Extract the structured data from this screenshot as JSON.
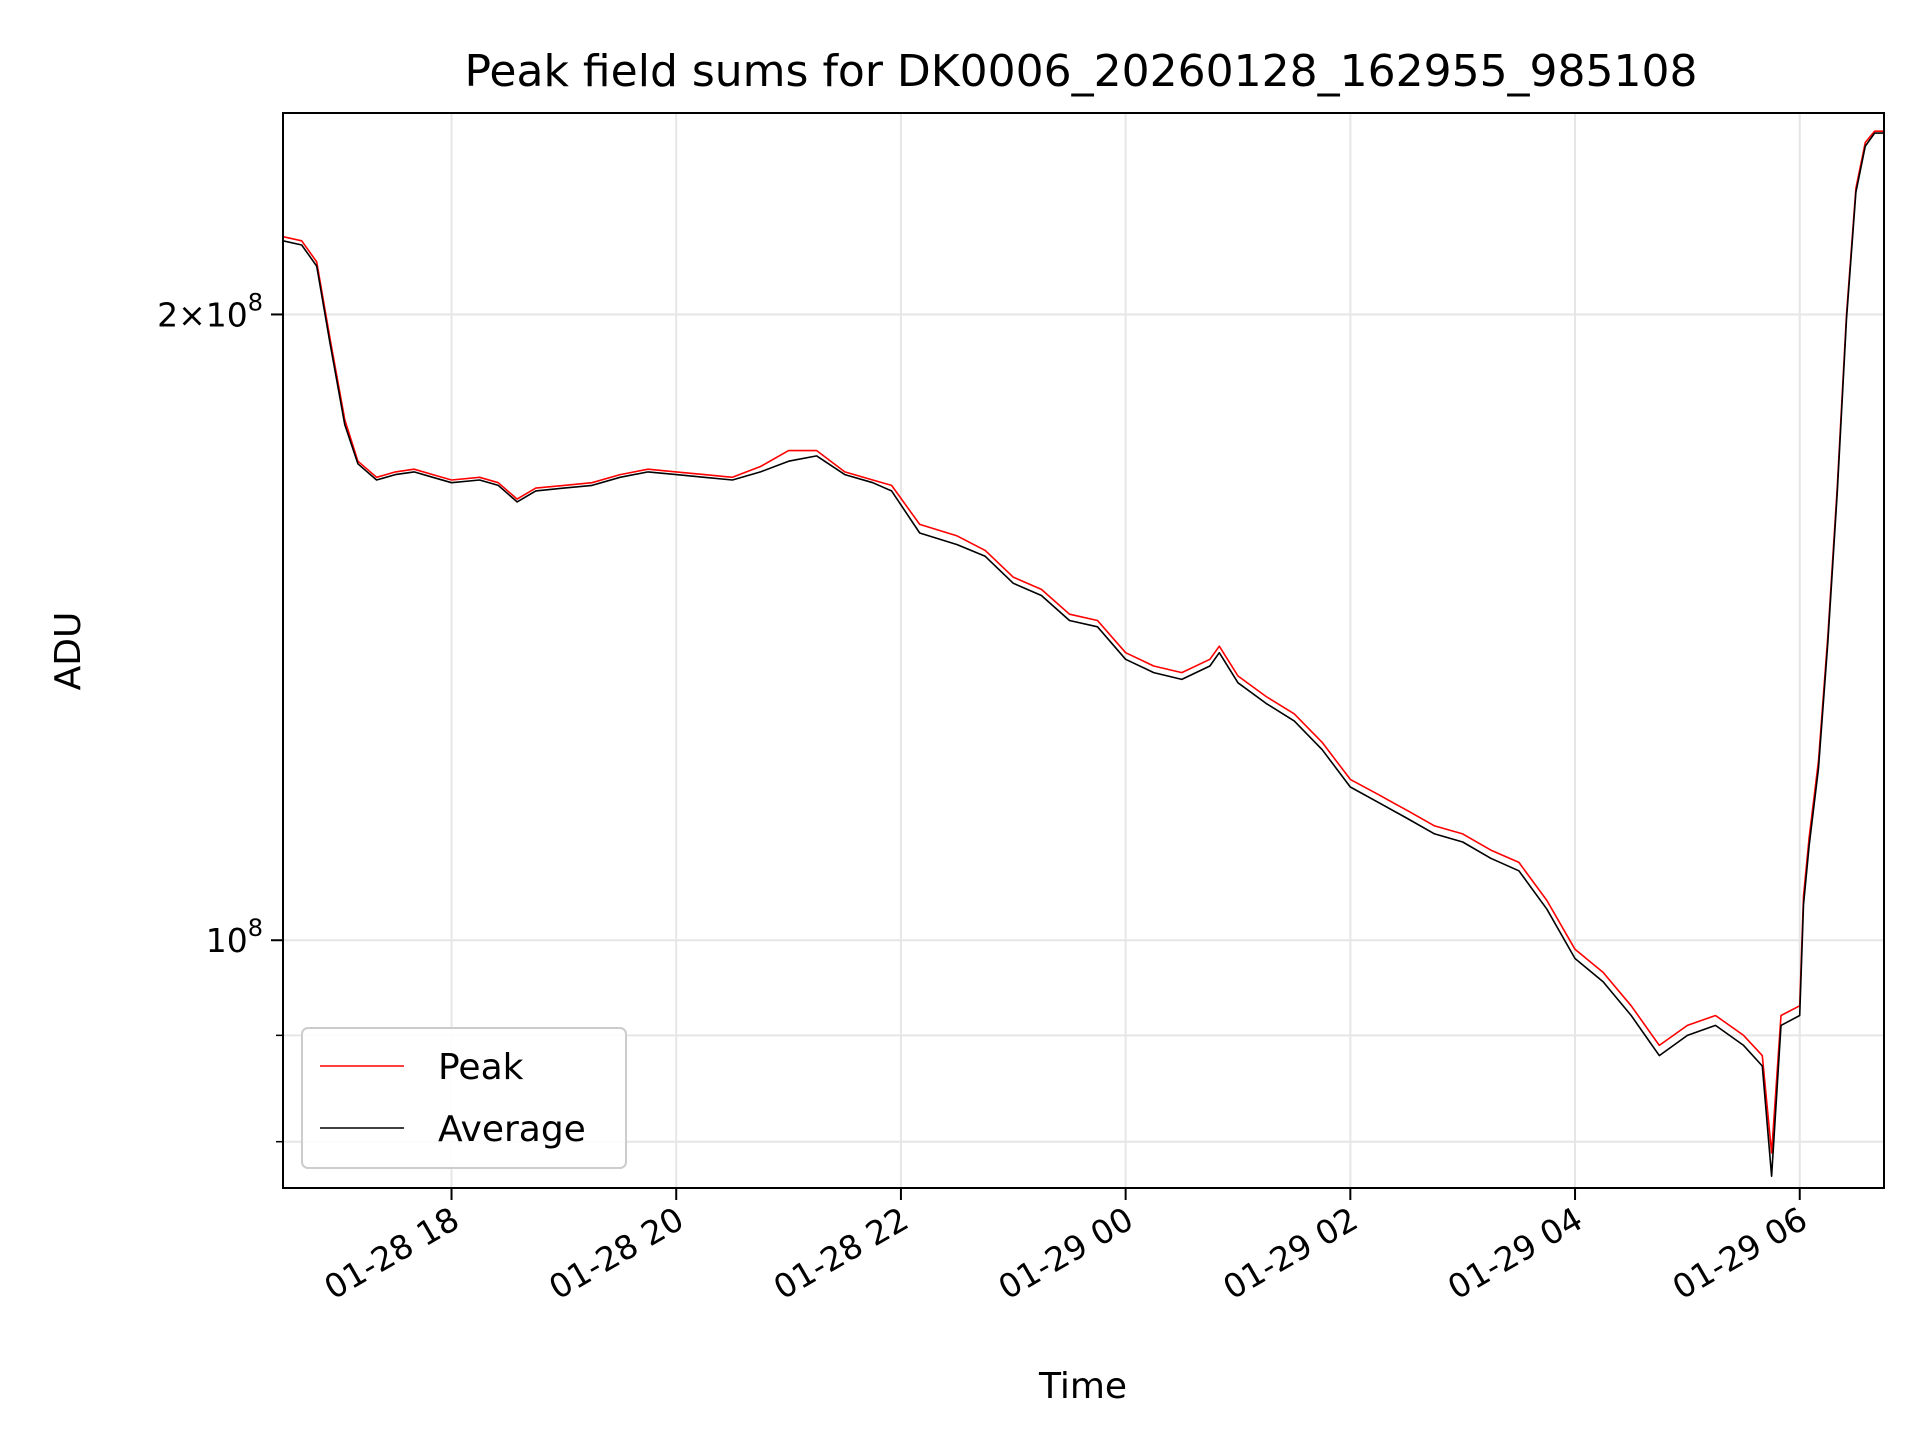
{
  "chart_data": {
    "type": "line",
    "title": "Peak field sums for DK0006_20260128_162955_985108",
    "xlabel": "Time",
    "ylabel": "ADU",
    "y_scale": "log",
    "xlim": [
      "2026-01-28 16:30",
      "2026-01-29 06:45"
    ],
    "ylim": [
      76000000,
      250000000
    ],
    "grid": true,
    "legend_position": "lower-left",
    "x_ticks": [
      {
        "value": "2026-01-28 18:00",
        "label": "01-28 18"
      },
      {
        "value": "2026-01-28 20:00",
        "label": "01-28 20"
      },
      {
        "value": "2026-01-28 22:00",
        "label": "01-28 22"
      },
      {
        "value": "2026-01-29 00:00",
        "label": "01-29 00"
      },
      {
        "value": "2026-01-29 02:00",
        "label": "01-29 02"
      },
      {
        "value": "2026-01-29 04:00",
        "label": "01-29 04"
      },
      {
        "value": "2026-01-29 06:00",
        "label": "01-29 06"
      }
    ],
    "y_major_ticks": [
      {
        "value": 100000000,
        "label_base": "10",
        "label_exp": "8"
      },
      {
        "value": 200000000,
        "label_base": "2×10",
        "label_exp": "8"
      }
    ],
    "y_minor_ticks": [
      80000000,
      90000000
    ],
    "series": [
      {
        "name": "Peak",
        "color": "#ff0000",
        "x": [
          "2026-01-28 16:30",
          "2026-01-28 16:40",
          "2026-01-28 16:48",
          "2026-01-28 16:55",
          "2026-01-28 17:03",
          "2026-01-28 17:10",
          "2026-01-28 17:20",
          "2026-01-28 17:30",
          "2026-01-28 17:40",
          "2026-01-28 17:50",
          "2026-01-28 18:00",
          "2026-01-28 18:15",
          "2026-01-28 18:25",
          "2026-01-28 18:35",
          "2026-01-28 18:45",
          "2026-01-28 19:00",
          "2026-01-28 19:15",
          "2026-01-28 19:30",
          "2026-01-28 19:45",
          "2026-01-28 20:00",
          "2026-01-28 20:15",
          "2026-01-28 20:30",
          "2026-01-28 20:45",
          "2026-01-28 21:00",
          "2026-01-28 21:15",
          "2026-01-28 21:30",
          "2026-01-28 21:45",
          "2026-01-28 21:55",
          "2026-01-28 22:10",
          "2026-01-28 22:30",
          "2026-01-28 22:45",
          "2026-01-28 23:00",
          "2026-01-28 23:15",
          "2026-01-28 23:30",
          "2026-01-28 23:45",
          "2026-01-29 00:00",
          "2026-01-29 00:15",
          "2026-01-29 00:30",
          "2026-01-29 00:45",
          "2026-01-29 00:50",
          "2026-01-29 01:00",
          "2026-01-29 01:15",
          "2026-01-29 01:30",
          "2026-01-29 01:45",
          "2026-01-29 02:00",
          "2026-01-29 02:15",
          "2026-01-29 02:30",
          "2026-01-29 02:45",
          "2026-01-29 03:00",
          "2026-01-29 03:15",
          "2026-01-29 03:30",
          "2026-01-29 03:45",
          "2026-01-29 04:00",
          "2026-01-29 04:15",
          "2026-01-29 04:30",
          "2026-01-29 04:45",
          "2026-01-29 05:00",
          "2026-01-29 05:15",
          "2026-01-29 05:30",
          "2026-01-29 05:40",
          "2026-01-29 05:45",
          "2026-01-29 05:50",
          "2026-01-29 06:00",
          "2026-01-29 06:02",
          "2026-01-29 06:05",
          "2026-01-29 06:10",
          "2026-01-29 06:15",
          "2026-01-29 06:20",
          "2026-01-29 06:25",
          "2026-01-29 06:30",
          "2026-01-29 06:35",
          "2026-01-29 06:40",
          "2026-01-29 06:45"
        ],
        "values": [
          218000000,
          217000000,
          212000000,
          195000000,
          178000000,
          170000000,
          167000000,
          168000000,
          168500000,
          167500000,
          166500000,
          167000000,
          166000000,
          163000000,
          165000000,
          165500000,
          166000000,
          167500000,
          168500000,
          168000000,
          167500000,
          167000000,
          169000000,
          172000000,
          172000000,
          168000000,
          166500000,
          165500000,
          158500000,
          156500000,
          154000000,
          149500000,
          147500000,
          143500000,
          142500000,
          137500000,
          135500000,
          134500000,
          136500000,
          138500000,
          134000000,
          131000000,
          128500000,
          124500000,
          119500000,
          117500000,
          115500000,
          113500000,
          112500000,
          110500000,
          109000000,
          104500000,
          99000000,
          96500000,
          93000000,
          89000000,
          91000000,
          92000000,
          90000000,
          88000000,
          79000000,
          92000000,
          93000000,
          105000000,
          112000000,
          122000000,
          140000000,
          165000000,
          200000000,
          230000000,
          242000000,
          245000000,
          245000000
        ]
      },
      {
        "name": "Average",
        "color": "#000000",
        "x": [
          "2026-01-28 16:30",
          "2026-01-28 16:40",
          "2026-01-28 16:48",
          "2026-01-28 16:55",
          "2026-01-28 17:03",
          "2026-01-28 17:10",
          "2026-01-28 17:20",
          "2026-01-28 17:30",
          "2026-01-28 17:40",
          "2026-01-28 17:50",
          "2026-01-28 18:00",
          "2026-01-28 18:15",
          "2026-01-28 18:25",
          "2026-01-28 18:35",
          "2026-01-28 18:45",
          "2026-01-28 19:00",
          "2026-01-28 19:15",
          "2026-01-28 19:30",
          "2026-01-28 19:45",
          "2026-01-28 20:00",
          "2026-01-28 20:15",
          "2026-01-28 20:30",
          "2026-01-28 20:45",
          "2026-01-28 21:00",
          "2026-01-28 21:15",
          "2026-01-28 21:30",
          "2026-01-28 21:45",
          "2026-01-28 21:55",
          "2026-01-28 22:10",
          "2026-01-28 22:30",
          "2026-01-28 22:45",
          "2026-01-28 23:00",
          "2026-01-28 23:15",
          "2026-01-28 23:30",
          "2026-01-28 23:45",
          "2026-01-29 00:00",
          "2026-01-29 00:15",
          "2026-01-29 00:30",
          "2026-01-29 00:45",
          "2026-01-29 00:50",
          "2026-01-29 01:00",
          "2026-01-29 01:15",
          "2026-01-29 01:30",
          "2026-01-29 01:45",
          "2026-01-29 02:00",
          "2026-01-29 02:15",
          "2026-01-29 02:30",
          "2026-01-29 02:45",
          "2026-01-29 03:00",
          "2026-01-29 03:15",
          "2026-01-29 03:30",
          "2026-01-29 03:45",
          "2026-01-29 04:00",
          "2026-01-29 04:15",
          "2026-01-29 04:30",
          "2026-01-29 04:45",
          "2026-01-29 05:00",
          "2026-01-29 05:15",
          "2026-01-29 05:30",
          "2026-01-29 05:40",
          "2026-01-29 05:45",
          "2026-01-29 05:50",
          "2026-01-29 06:00",
          "2026-01-29 06:02",
          "2026-01-29 06:05",
          "2026-01-29 06:10",
          "2026-01-29 06:15",
          "2026-01-29 06:20",
          "2026-01-29 06:25",
          "2026-01-29 06:30",
          "2026-01-29 06:35",
          "2026-01-29 06:40",
          "2026-01-29 06:45"
        ],
        "values": [
          217000000,
          216000000,
          211000000,
          194000000,
          177000000,
          169500000,
          166500000,
          167500000,
          168000000,
          167000000,
          166000000,
          166500000,
          165500000,
          162500000,
          164500000,
          165000000,
          165500000,
          167000000,
          168000000,
          167500000,
          167000000,
          166500000,
          168000000,
          170000000,
          171000000,
          167500000,
          166000000,
          164500000,
          157000000,
          155000000,
          153000000,
          148500000,
          146500000,
          142500000,
          141500000,
          136500000,
          134500000,
          133500000,
          135500000,
          137500000,
          133000000,
          130000000,
          127500000,
          123500000,
          118500000,
          116500000,
          114500000,
          112500000,
          111500000,
          109500000,
          108000000,
          103500000,
          98000000,
          95500000,
          92000000,
          88000000,
          90000000,
          91000000,
          89000000,
          87000000,
          77000000,
          91000000,
          92000000,
          104000000,
          111000000,
          121000000,
          139000000,
          164000000,
          199000000,
          229000000,
          241000000,
          244500000,
          244500000
        ]
      }
    ]
  }
}
